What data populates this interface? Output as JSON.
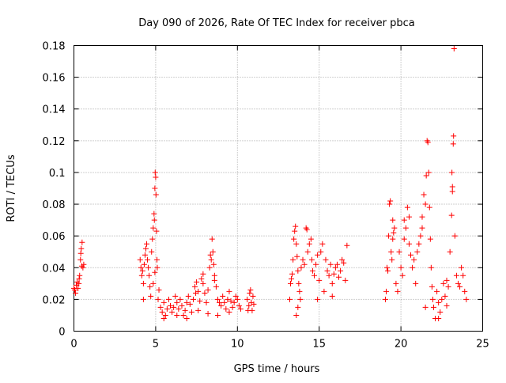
{
  "chart_data": {
    "type": "scatter",
    "title": "Day 090 of 2026, Rate Of TEC Index for receiver pbca",
    "xlabel": "GPS time / hours",
    "ylabel": "ROTI / TECUs",
    "xlim": [
      0,
      25
    ],
    "ylim": [
      0,
      0.18
    ],
    "x_ticks": [
      0,
      5,
      10,
      15,
      20,
      25
    ],
    "x_tick_labels": [
      "0",
      "5",
      "10",
      "15",
      "20",
      "25"
    ],
    "y_ticks": [
      0,
      0.02,
      0.04,
      0.06,
      0.08,
      0.1,
      0.12,
      0.14,
      0.16,
      0.18
    ],
    "y_tick_labels": [
      "0",
      "0.02",
      "0.04",
      "0.06",
      "0.08",
      "0.1",
      "0.12",
      "0.14",
      "0.16",
      "0.18"
    ],
    "grid": true,
    "marker": "plus",
    "color": "#ff0000",
    "series": [
      {
        "points": [
          [
            0.0,
            0.027
          ],
          [
            0.05,
            0.026
          ],
          [
            0.1,
            0.024
          ],
          [
            0.15,
            0.029
          ],
          [
            0.2,
            0.031
          ],
          [
            0.25,
            0.027
          ],
          [
            0.3,
            0.03
          ],
          [
            0.35,
            0.035
          ],
          [
            0.4,
            0.045
          ],
          [
            0.45,
            0.052
          ],
          [
            0.5,
            0.056
          ],
          [
            0.55,
            0.04
          ],
          [
            0.6,
            0.042
          ],
          [
            0.32,
            0.033
          ],
          [
            0.42,
            0.049
          ],
          [
            0.48,
            0.041
          ],
          [
            4.05,
            0.045
          ],
          [
            4.1,
            0.04
          ],
          [
            4.15,
            0.035
          ],
          [
            4.2,
            0.038
          ],
          [
            4.25,
            0.03
          ],
          [
            4.3,
            0.042
          ],
          [
            4.35,
            0.048
          ],
          [
            4.4,
            0.052
          ],
          [
            4.45,
            0.055
          ],
          [
            4.5,
            0.045
          ],
          [
            4.55,
            0.04
          ],
          [
            4.6,
            0.035
          ],
          [
            4.65,
            0.028
          ],
          [
            4.7,
            0.022
          ],
          [
            4.75,
            0.05
          ],
          [
            4.8,
            0.058
          ],
          [
            4.85,
            0.065
          ],
          [
            4.9,
            0.074
          ],
          [
            4.92,
            0.07
          ],
          [
            4.95,
            0.09
          ],
          [
            4.97,
            0.1
          ],
          [
            5.0,
            0.097
          ],
          [
            5.02,
            0.086
          ],
          [
            5.05,
            0.063
          ],
          [
            5.08,
            0.045
          ],
          [
            5.1,
            0.04
          ],
          [
            5.15,
            0.02
          ],
          [
            5.2,
            0.026
          ],
          [
            4.25,
            0.02
          ],
          [
            4.85,
            0.03
          ],
          [
            4.95,
            0.037
          ],
          [
            5.3,
            0.015
          ],
          [
            5.4,
            0.012
          ],
          [
            5.5,
            0.018
          ],
          [
            5.6,
            0.01
          ],
          [
            5.7,
            0.014
          ],
          [
            5.8,
            0.02
          ],
          [
            5.9,
            0.016
          ],
          [
            6.0,
            0.012
          ],
          [
            6.1,
            0.015
          ],
          [
            6.2,
            0.022
          ],
          [
            6.3,
            0.018
          ],
          [
            6.4,
            0.014
          ],
          [
            6.5,
            0.02
          ],
          [
            6.6,
            0.016
          ],
          [
            6.7,
            0.01
          ],
          [
            6.8,
            0.013
          ],
          [
            6.9,
            0.018
          ],
          [
            7.0,
            0.022
          ],
          [
            7.1,
            0.017
          ],
          [
            7.2,
            0.012
          ],
          [
            7.3,
            0.02
          ],
          [
            7.4,
            0.028
          ],
          [
            7.5,
            0.031
          ],
          [
            7.6,
            0.025
          ],
          [
            7.7,
            0.019
          ],
          [
            7.8,
            0.033
          ],
          [
            7.9,
            0.03
          ],
          [
            8.0,
            0.024
          ],
          [
            8.1,
            0.018
          ],
          [
            8.2,
            0.026
          ],
          [
            8.3,
            0.04
          ],
          [
            8.4,
            0.045
          ],
          [
            8.45,
            0.058
          ],
          [
            8.5,
            0.05
          ],
          [
            8.55,
            0.042
          ],
          [
            8.6,
            0.032
          ],
          [
            8.7,
            0.028
          ],
          [
            8.8,
            0.02
          ],
          [
            8.9,
            0.018
          ],
          [
            9.0,
            0.016
          ],
          [
            9.1,
            0.022
          ],
          [
            9.2,
            0.018
          ],
          [
            9.3,
            0.014
          ],
          [
            9.4,
            0.02
          ],
          [
            9.5,
            0.025
          ],
          [
            9.6,
            0.019
          ],
          [
            9.7,
            0.015
          ],
          [
            9.8,
            0.018
          ],
          [
            9.9,
            0.022
          ],
          [
            10.0,
            0.02
          ],
          [
            10.1,
            0.016
          ],
          [
            10.2,
            0.014
          ],
          [
            5.5,
            0.008
          ],
          [
            6.3,
            0.01
          ],
          [
            6.9,
            0.008
          ],
          [
            7.6,
            0.013
          ],
          [
            8.2,
            0.011
          ],
          [
            8.8,
            0.01
          ],
          [
            9.5,
            0.012
          ],
          [
            8.6,
            0.035
          ],
          [
            8.35,
            0.048
          ],
          [
            7.9,
            0.036
          ],
          [
            7.45,
            0.024
          ],
          [
            10.6,
            0.02
          ],
          [
            10.7,
            0.016
          ],
          [
            10.75,
            0.024
          ],
          [
            10.8,
            0.026
          ],
          [
            10.85,
            0.018
          ],
          [
            10.9,
            0.013
          ],
          [
            10.95,
            0.022
          ],
          [
            11.0,
            0.017
          ],
          [
            10.65,
            0.013
          ],
          [
            13.2,
            0.02
          ],
          [
            13.25,
            0.03
          ],
          [
            13.3,
            0.033
          ],
          [
            13.35,
            0.036
          ],
          [
            13.4,
            0.045
          ],
          [
            13.45,
            0.058
          ],
          [
            13.5,
            0.063
          ],
          [
            13.55,
            0.066
          ],
          [
            13.6,
            0.055
          ],
          [
            13.65,
            0.047
          ],
          [
            13.7,
            0.038
          ],
          [
            13.75,
            0.03
          ],
          [
            13.8,
            0.025
          ],
          [
            13.85,
            0.02
          ],
          [
            13.9,
            0.04
          ],
          [
            14.0,
            0.045
          ],
          [
            14.1,
            0.042
          ],
          [
            14.2,
            0.065
          ],
          [
            14.3,
            0.05
          ],
          [
            14.4,
            0.055
          ],
          [
            14.5,
            0.058
          ],
          [
            14.55,
            0.045
          ],
          [
            14.6,
            0.038
          ],
          [
            14.7,
            0.035
          ],
          [
            14.8,
            0.042
          ],
          [
            14.9,
            0.048
          ],
          [
            15.0,
            0.032
          ],
          [
            15.1,
            0.05
          ],
          [
            15.2,
            0.055
          ],
          [
            15.3,
            0.025
          ],
          [
            15.4,
            0.045
          ],
          [
            15.5,
            0.038
          ],
          [
            15.6,
            0.035
          ],
          [
            15.7,
            0.042
          ],
          [
            15.8,
            0.03
          ],
          [
            15.9,
            0.036
          ],
          [
            16.0,
            0.04
          ],
          [
            16.1,
            0.042
          ],
          [
            16.2,
            0.034
          ],
          [
            16.3,
            0.038
          ],
          [
            16.4,
            0.045
          ],
          [
            16.5,
            0.043
          ],
          [
            16.6,
            0.032
          ],
          [
            16.7,
            0.054
          ],
          [
            13.6,
            0.01
          ],
          [
            13.7,
            0.015
          ],
          [
            14.9,
            0.02
          ],
          [
            15.8,
            0.022
          ],
          [
            14.25,
            0.064
          ],
          [
            19.05,
            0.02
          ],
          [
            19.1,
            0.025
          ],
          [
            19.15,
            0.04
          ],
          [
            19.2,
            0.038
          ],
          [
            19.25,
            0.06
          ],
          [
            19.3,
            0.08
          ],
          [
            19.35,
            0.082
          ],
          [
            19.4,
            0.05
          ],
          [
            19.45,
            0.045
          ],
          [
            19.5,
            0.058
          ],
          [
            19.55,
            0.062
          ],
          [
            19.6,
            0.065
          ],
          [
            19.7,
            0.03
          ],
          [
            19.8,
            0.025
          ],
          [
            19.9,
            0.05
          ],
          [
            20.0,
            0.04
          ],
          [
            20.1,
            0.035
          ],
          [
            20.2,
            0.058
          ],
          [
            20.3,
            0.065
          ],
          [
            20.4,
            0.078
          ],
          [
            20.5,
            0.055
          ],
          [
            20.6,
            0.048
          ],
          [
            20.7,
            0.04
          ],
          [
            20.8,
            0.045
          ],
          [
            20.9,
            0.03
          ],
          [
            21.0,
            0.05
          ],
          [
            21.1,
            0.055
          ],
          [
            21.2,
            0.06
          ],
          [
            21.3,
            0.072
          ],
          [
            21.4,
            0.086
          ],
          [
            21.5,
            0.08
          ],
          [
            21.55,
            0.098
          ],
          [
            21.6,
            0.12
          ],
          [
            21.65,
            0.119
          ],
          [
            21.7,
            0.1
          ],
          [
            21.75,
            0.078
          ],
          [
            21.8,
            0.058
          ],
          [
            21.85,
            0.04
          ],
          [
            21.9,
            0.028
          ],
          [
            21.95,
            0.02
          ],
          [
            22.0,
            0.015
          ],
          [
            22.1,
            0.008
          ],
          [
            22.2,
            0.025
          ],
          [
            22.3,
            0.018
          ],
          [
            22.4,
            0.012
          ],
          [
            22.5,
            0.02
          ],
          [
            22.6,
            0.03
          ],
          [
            22.7,
            0.022
          ],
          [
            22.8,
            0.016
          ],
          [
            22.9,
            0.028
          ],
          [
            23.0,
            0.05
          ],
          [
            23.1,
            0.073
          ],
          [
            23.15,
            0.091
          ],
          [
            23.2,
            0.118
          ],
          [
            23.22,
            0.123
          ],
          [
            23.25,
            0.178
          ],
          [
            23.3,
            0.06
          ],
          [
            23.4,
            0.035
          ],
          [
            23.5,
            0.03
          ],
          [
            23.6,
            0.028
          ],
          [
            23.7,
            0.04
          ],
          [
            23.8,
            0.035
          ],
          [
            23.9,
            0.025
          ],
          [
            24.0,
            0.02
          ],
          [
            23.12,
            0.1
          ],
          [
            23.15,
            0.088
          ],
          [
            22.8,
            0.032
          ],
          [
            21.3,
            0.065
          ],
          [
            20.5,
            0.072
          ],
          [
            20.2,
            0.07
          ],
          [
            19.5,
            0.07
          ],
          [
            21.5,
            0.015
          ],
          [
            22.3,
            0.008
          ]
        ]
      }
    ]
  }
}
